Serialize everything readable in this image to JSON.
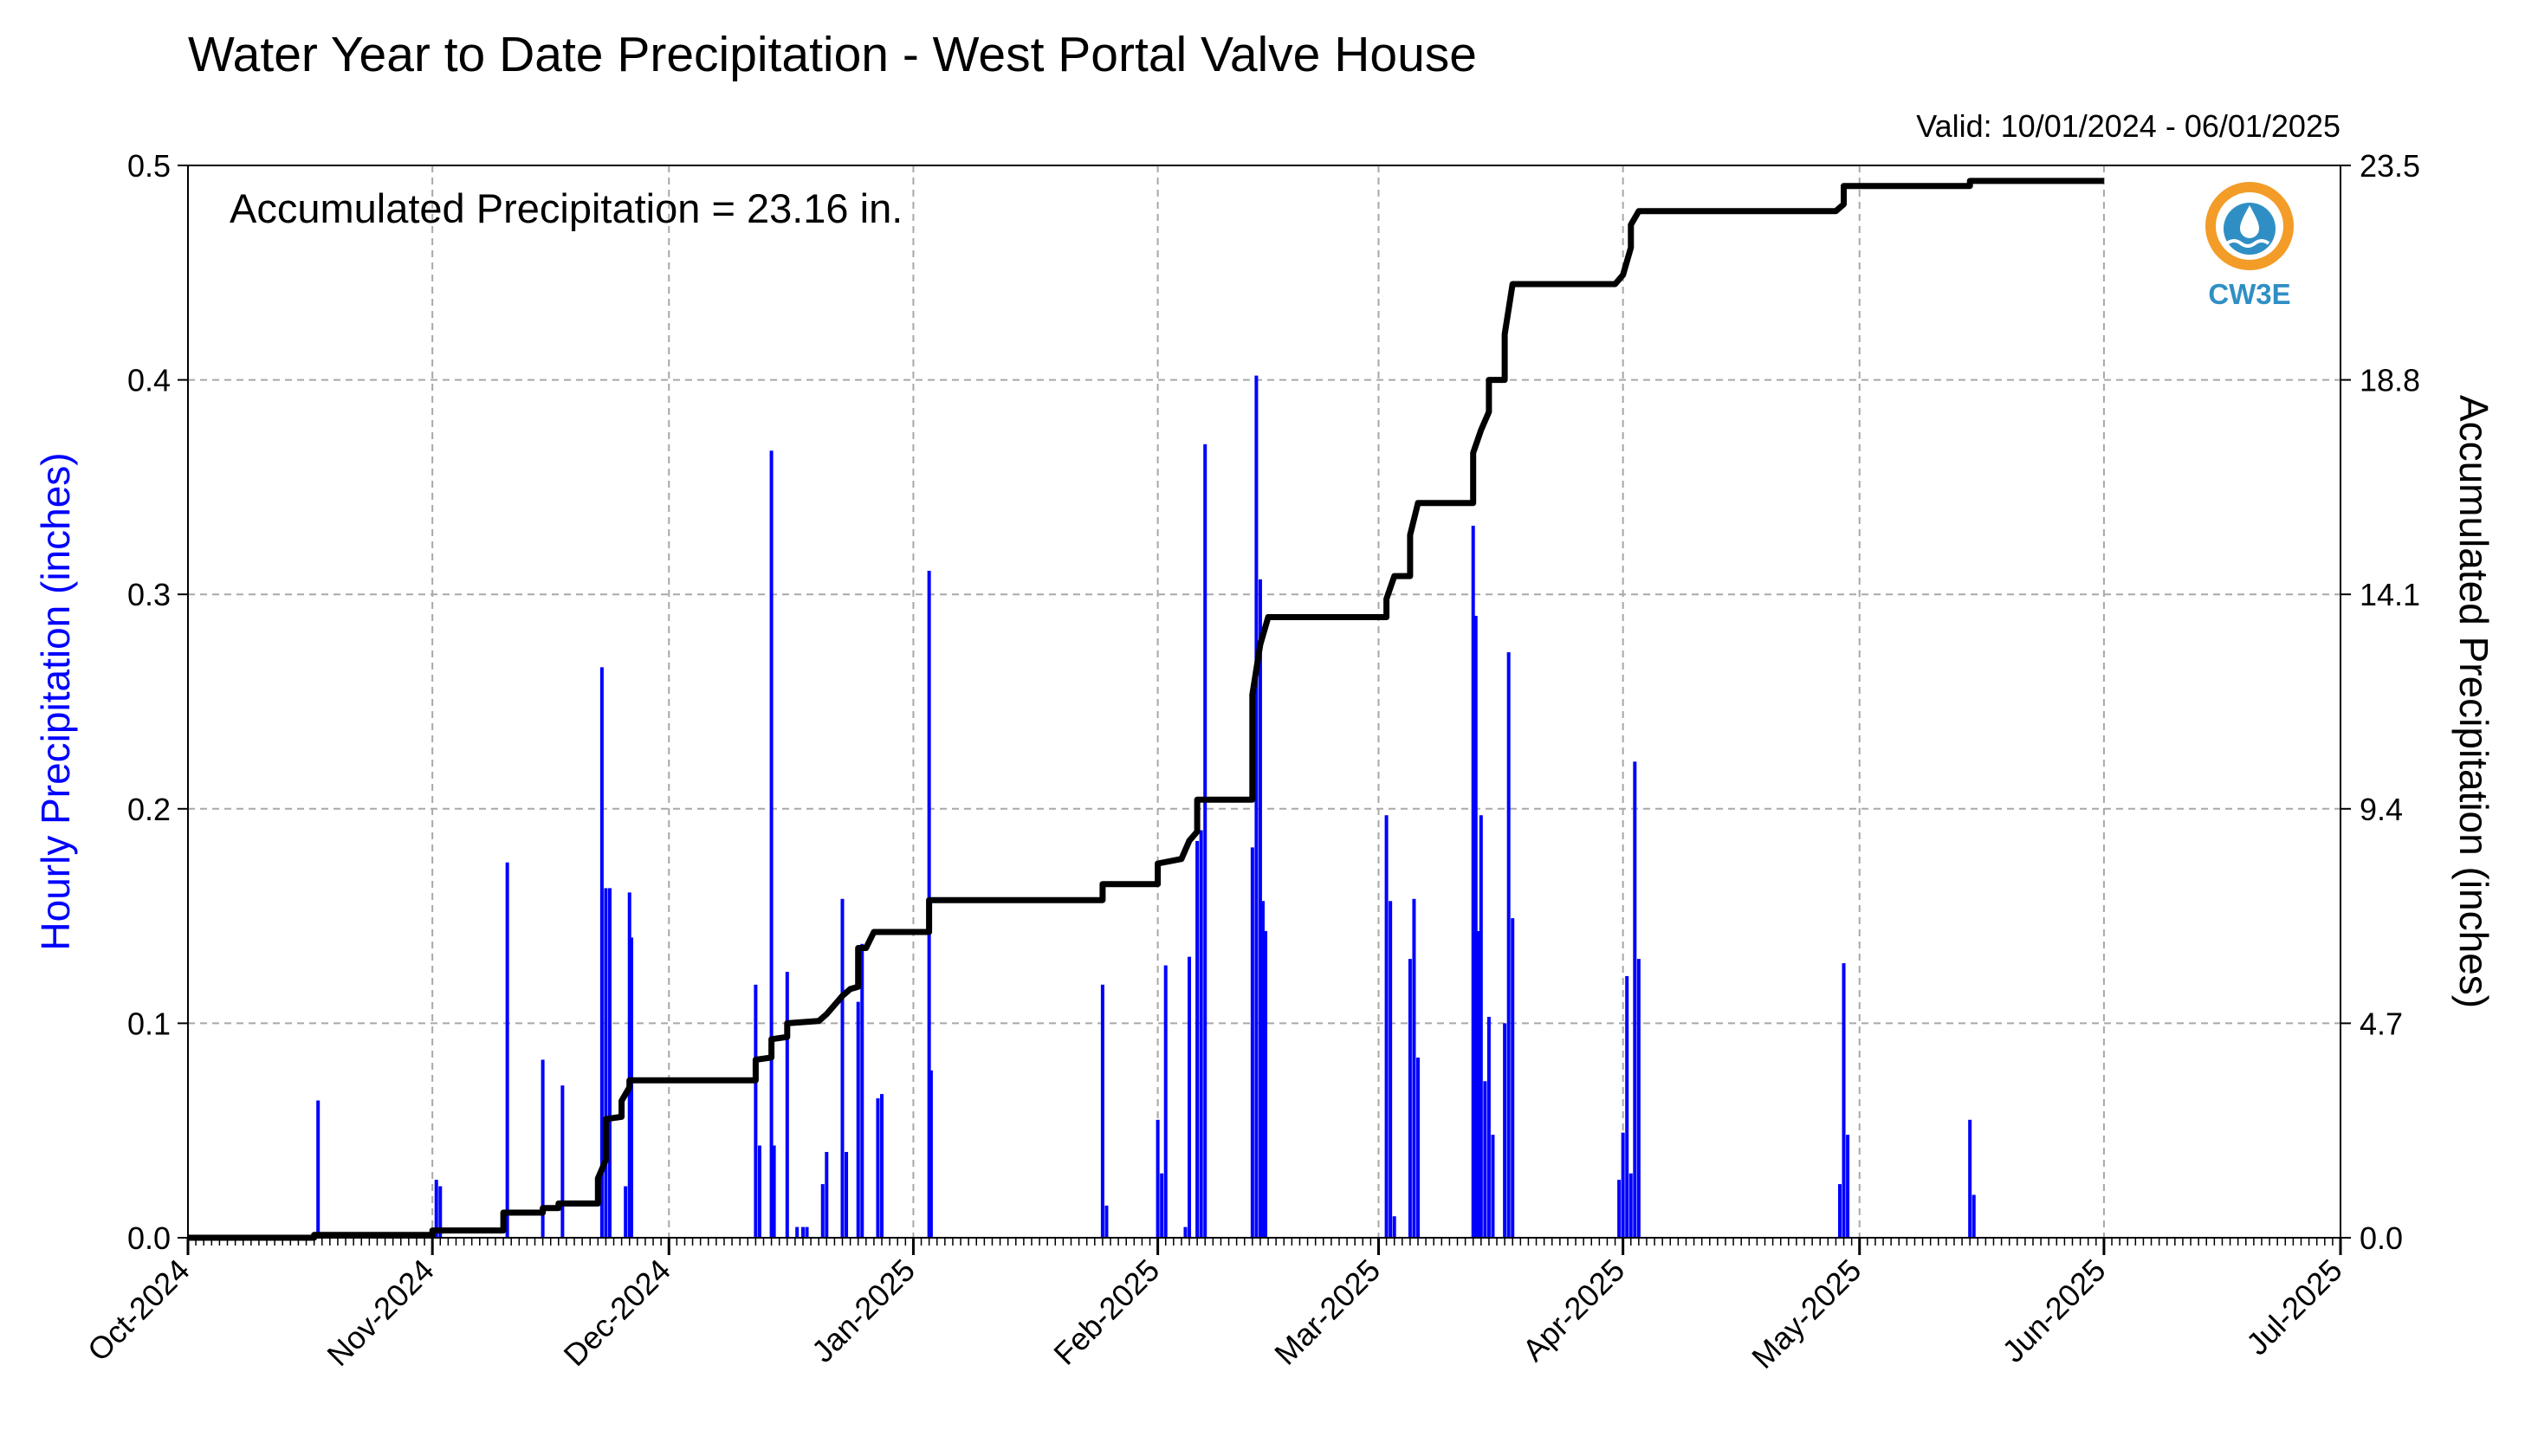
{
  "chart_data": {
    "type": "bar+line",
    "title": "Water Year to Date Precipitation - West Portal Valve House",
    "valid_label": "Valid: 10/01/2024 - 06/01/2025",
    "annotation": "Accumulated Precipitation = 23.16 in.",
    "logo_text": "CW3E",
    "ylabel_left": "Hourly Precipitation (inches)",
    "ylabel_right": "Accumulated Precipitation (inches)",
    "ylim_left": [
      0,
      0.5
    ],
    "ylim_right": [
      0,
      23.5
    ],
    "left_ticks": [
      "0.0",
      "0.1",
      "0.2",
      "0.3",
      "0.4",
      "0.5"
    ],
    "right_ticks": [
      "0.0",
      "4.7",
      "9.4",
      "14.1",
      "18.8",
      "23.5"
    ],
    "x_start": "2024-10-01",
    "x_end": "2025-07-01",
    "x_ticks": [
      {
        "date": "2024-10-01",
        "label": "Oct-2024"
      },
      {
        "date": "2024-11-01",
        "label": "Nov-2024"
      },
      {
        "date": "2024-12-01",
        "label": "Dec-2024"
      },
      {
        "date": "2025-01-01",
        "label": "Jan-2025"
      },
      {
        "date": "2025-02-01",
        "label": "Feb-2025"
      },
      {
        "date": "2025-03-01",
        "label": "Mar-2025"
      },
      {
        "date": "2025-04-01",
        "label": "Apr-2025"
      },
      {
        "date": "2025-05-01",
        "label": "May-2025"
      },
      {
        "date": "2025-06-01",
        "label": "Jun-2025"
      },
      {
        "date": "2025-07-01",
        "label": "Jul-2025"
      }
    ],
    "grid": true,
    "colors": {
      "bars": "#0000ff",
      "line": "#000000",
      "left_label": "#0000ff",
      "logo_ring": "#f39c28",
      "logo_drop": "#2f8fc4"
    },
    "series": [
      {
        "name": "Hourly Precipitation (inches)",
        "type": "bar",
        "points": [
          [
            "2024-10-17T12",
            0.064
          ],
          [
            "2024-11-01T12",
            0.027
          ],
          [
            "2024-11-02T00",
            0.024
          ],
          [
            "2024-11-10T12",
            0.175
          ],
          [
            "2024-11-15T00",
            0.083
          ],
          [
            "2024-11-17T12",
            0.071
          ],
          [
            "2024-11-22T12",
            0.266
          ],
          [
            "2024-11-23T00",
            0.163
          ],
          [
            "2024-11-23T12",
            0.163
          ],
          [
            "2024-11-25T12",
            0.024
          ],
          [
            "2024-11-26T00",
            0.161
          ],
          [
            "2024-11-26T06",
            0.14
          ],
          [
            "2024-12-12T00",
            0.118
          ],
          [
            "2024-12-12T12",
            0.043
          ],
          [
            "2024-12-14T00",
            0.367
          ],
          [
            "2024-12-14T08",
            0.043
          ],
          [
            "2024-12-16T00",
            0.124
          ],
          [
            "2024-12-17T06",
            0.005
          ],
          [
            "2024-12-18T00",
            0.005
          ],
          [
            "2024-12-18T12",
            0.005
          ],
          [
            "2024-12-20T12",
            0.025
          ],
          [
            "2024-12-21T00",
            0.04
          ],
          [
            "2024-12-23T00",
            0.158
          ],
          [
            "2024-12-23T12",
            0.04
          ],
          [
            "2024-12-25T00",
            0.11
          ],
          [
            "2024-12-25T12",
            0.137
          ],
          [
            "2024-12-27T12",
            0.065
          ],
          [
            "2024-12-28T00",
            0.067
          ],
          [
            "2025-01-03T00",
            0.311
          ],
          [
            "2025-01-03T06",
            0.078
          ],
          [
            "2025-01-25T00",
            0.118
          ],
          [
            "2025-01-25T12",
            0.015
          ],
          [
            "2025-02-01T00",
            0.055
          ],
          [
            "2025-02-01T12",
            0.03
          ],
          [
            "2025-02-02T00",
            0.127
          ],
          [
            "2025-02-04T12",
            0.005
          ],
          [
            "2025-02-05T00",
            0.131
          ],
          [
            "2025-02-06T00",
            0.185
          ],
          [
            "2025-02-06T12",
            0.19
          ],
          [
            "2025-02-07T00",
            0.37
          ],
          [
            "2025-02-13T00",
            0.182
          ],
          [
            "2025-02-13T12",
            0.402
          ],
          [
            "2025-02-14T00",
            0.307
          ],
          [
            "2025-02-14T08",
            0.157
          ],
          [
            "2025-02-14T16",
            0.143
          ],
          [
            "2025-03-02T00",
            0.197
          ],
          [
            "2025-03-02T12",
            0.157
          ],
          [
            "2025-03-03T00",
            0.01
          ],
          [
            "2025-03-05T00",
            0.13
          ],
          [
            "2025-03-05T12",
            0.158
          ],
          [
            "2025-03-06T00",
            0.084
          ],
          [
            "2025-03-13T00",
            0.332
          ],
          [
            "2025-03-13T08",
            0.29
          ],
          [
            "2025-03-13T16",
            0.143
          ],
          [
            "2025-03-14T00",
            0.197
          ],
          [
            "2025-03-14T12",
            0.073
          ],
          [
            "2025-03-15T00",
            0.103
          ],
          [
            "2025-03-15T12",
            0.048
          ],
          [
            "2025-03-17T00",
            0.1
          ],
          [
            "2025-03-17T12",
            0.273
          ],
          [
            "2025-03-18T00",
            0.149
          ],
          [
            "2025-03-31T12",
            0.027
          ],
          [
            "2025-04-01T00",
            0.049
          ],
          [
            "2025-04-01T12",
            0.122
          ],
          [
            "2025-04-02T00",
            0.03
          ],
          [
            "2025-04-02T12",
            0.222
          ],
          [
            "2025-04-03T00",
            0.13
          ],
          [
            "2025-04-28T12",
            0.025
          ],
          [
            "2025-04-29T00",
            0.128
          ],
          [
            "2025-04-29T12",
            0.048
          ],
          [
            "2025-05-15T00",
            0.055
          ],
          [
            "2025-05-15T12",
            0.02
          ]
        ]
      },
      {
        "name": "Accumulated Precipitation (inches)",
        "type": "line",
        "points": [
          [
            "2024-10-01",
            0.0
          ],
          [
            "2024-10-17",
            0.0
          ],
          [
            "2024-10-17",
            0.06
          ],
          [
            "2024-11-01",
            0.06
          ],
          [
            "2024-11-01",
            0.16
          ],
          [
            "2024-11-10",
            0.16
          ],
          [
            "2024-11-10",
            0.55
          ],
          [
            "2024-11-15",
            0.55
          ],
          [
            "2024-11-15",
            0.65
          ],
          [
            "2024-11-17",
            0.65
          ],
          [
            "2024-11-17",
            0.75
          ],
          [
            "2024-11-22",
            0.75
          ],
          [
            "2024-11-22",
            1.3
          ],
          [
            "2024-11-23",
            1.7
          ],
          [
            "2024-11-23",
            2.6
          ],
          [
            "2024-11-25",
            2.65
          ],
          [
            "2024-11-25",
            3.0
          ],
          [
            "2024-11-26",
            3.3
          ],
          [
            "2024-11-26",
            3.45
          ],
          [
            "2024-12-12",
            3.45
          ],
          [
            "2024-12-12",
            3.75
          ],
          [
            "2024-12-12",
            3.9
          ],
          [
            "2024-12-14",
            3.95
          ],
          [
            "2024-12-14",
            4.35
          ],
          [
            "2024-12-16",
            4.4
          ],
          [
            "2024-12-16",
            4.7
          ],
          [
            "2024-12-20",
            4.75
          ],
          [
            "2024-12-21",
            4.9
          ],
          [
            "2024-12-23",
            5.3
          ],
          [
            "2024-12-24",
            5.45
          ],
          [
            "2024-12-25",
            5.5
          ],
          [
            "2024-12-25",
            6.35
          ],
          [
            "2024-12-26",
            6.35
          ],
          [
            "2024-12-27",
            6.7
          ],
          [
            "2025-01-03",
            6.7
          ],
          [
            "2025-01-03",
            7.4
          ],
          [
            "2025-01-25",
            7.4
          ],
          [
            "2025-01-25",
            7.75
          ],
          [
            "2025-02-01",
            7.75
          ],
          [
            "2025-02-01",
            8.2
          ],
          [
            "2025-02-04",
            8.3
          ],
          [
            "2025-02-05",
            8.7
          ],
          [
            "2025-02-06",
            8.9
          ],
          [
            "2025-02-06",
            9.6
          ],
          [
            "2025-02-13",
            9.6
          ],
          [
            "2025-02-13",
            10.5
          ],
          [
            "2025-02-13",
            11.9
          ],
          [
            "2025-02-14",
            13.0
          ],
          [
            "2025-02-15",
            13.6
          ],
          [
            "2025-03-02",
            13.6
          ],
          [
            "2025-03-02",
            14.0
          ],
          [
            "2025-03-03",
            14.5
          ],
          [
            "2025-03-05",
            14.5
          ],
          [
            "2025-03-05",
            15.4
          ],
          [
            "2025-03-06",
            16.1
          ],
          [
            "2025-03-13",
            16.1
          ],
          [
            "2025-03-13",
            17.2
          ],
          [
            "2025-03-14",
            17.7
          ],
          [
            "2025-03-15",
            18.1
          ],
          [
            "2025-03-15",
            18.8
          ],
          [
            "2025-03-17",
            18.8
          ],
          [
            "2025-03-17",
            19.8
          ],
          [
            "2025-03-18",
            20.9
          ],
          [
            "2025-03-31",
            20.9
          ],
          [
            "2025-04-01",
            21.1
          ],
          [
            "2025-04-02",
            21.7
          ],
          [
            "2025-04-02",
            22.2
          ],
          [
            "2025-04-03",
            22.5
          ],
          [
            "2025-04-28",
            22.5
          ],
          [
            "2025-04-29",
            22.65
          ],
          [
            "2025-04-29",
            23.05
          ],
          [
            "2025-05-15",
            23.05
          ],
          [
            "2025-05-15",
            23.16
          ],
          [
            "2025-06-01",
            23.16
          ]
        ]
      }
    ]
  }
}
